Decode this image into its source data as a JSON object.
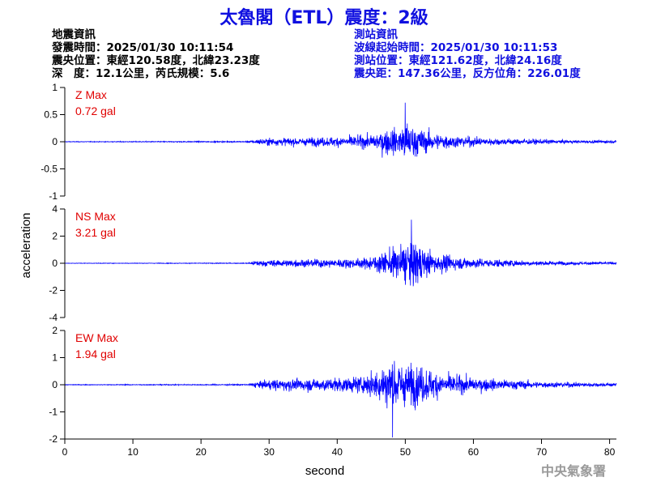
{
  "header": {
    "title": "太魯閣（ETL）震度：2級",
    "eq_info": [
      "地震資訊",
      "發震時間：2025/01/30 10:11:54",
      "震央位置：東經120.58度，北緯23.23度",
      "深　度：12.1公里，芮氏規模：5.6"
    ],
    "station_info": [
      "測站資訊",
      "波線起始時間：2025/01/30 10:11:53",
      "測站位置：東經121.62度，北緯24.16度",
      "震央距：147.36公里，反方位角：226.01度"
    ]
  },
  "watermark": "中央氣象署",
  "colors": {
    "trace": "#0000ff",
    "annotation": "#e00000",
    "title": "#1010e0"
  },
  "chart_data": {
    "type": "line",
    "xlabel": "second",
    "ylabel": "acceleration",
    "xlim": [
      0,
      81
    ],
    "xticks": [
      0,
      10,
      20,
      30,
      40,
      50,
      60,
      70,
      80
    ],
    "panels": [
      {
        "component": "Z",
        "label": "Z Max",
        "max_label": "0.72 gal",
        "ylim": [
          -1,
          1
        ],
        "yticks": [
          -1,
          -0.5,
          0,
          0.5,
          1
        ],
        "envelope": [
          [
            0,
            0.01
          ],
          [
            27,
            0.02
          ],
          [
            28,
            0.08
          ],
          [
            30,
            0.12
          ],
          [
            35,
            0.13
          ],
          [
            40,
            0.16
          ],
          [
            45,
            0.22
          ],
          [
            47,
            0.4
          ],
          [
            49,
            0.45
          ],
          [
            50,
            0.72
          ],
          [
            52,
            0.42
          ],
          [
            54,
            0.3
          ],
          [
            57,
            0.2
          ],
          [
            62,
            0.12
          ],
          [
            70,
            0.08
          ],
          [
            75,
            0.05
          ],
          [
            81,
            0.04
          ]
        ]
      },
      {
        "component": "NS",
        "label": "NS Max",
        "max_label": "3.21 gal",
        "ylim": [
          -4,
          4
        ],
        "yticks": [
          -4,
          -2,
          0,
          2,
          4
        ],
        "envelope": [
          [
            0,
            0.03
          ],
          [
            27,
            0.05
          ],
          [
            28,
            0.35
          ],
          [
            31,
            0.45
          ],
          [
            35,
            0.5
          ],
          [
            40,
            0.55
          ],
          [
            44,
            0.65
          ],
          [
            47,
            1.5
          ],
          [
            49,
            2.2
          ],
          [
            51,
            3.21
          ],
          [
            53,
            1.8
          ],
          [
            55,
            1.2
          ],
          [
            58,
            0.8
          ],
          [
            62,
            0.55
          ],
          [
            70,
            0.3
          ],
          [
            75,
            0.2
          ],
          [
            81,
            0.15
          ]
        ]
      },
      {
        "component": "EW",
        "label": "EW Max",
        "max_label": "1.94 gal",
        "ylim": [
          -2,
          2
        ],
        "yticks": [
          -2,
          -1,
          0,
          1,
          2
        ],
        "envelope": [
          [
            0,
            0.02
          ],
          [
            27,
            0.04
          ],
          [
            28,
            0.2
          ],
          [
            31,
            0.35
          ],
          [
            35,
            0.4
          ],
          [
            40,
            0.45
          ],
          [
            44,
            0.55
          ],
          [
            46,
            1.0
          ],
          [
            48,
            1.94
          ],
          [
            50,
            1.3
          ],
          [
            52,
            1.3
          ],
          [
            54,
            0.9
          ],
          [
            57,
            0.6
          ],
          [
            62,
            0.4
          ],
          [
            70,
            0.2
          ],
          [
            75,
            0.15
          ],
          [
            81,
            0.12
          ]
        ]
      }
    ]
  }
}
